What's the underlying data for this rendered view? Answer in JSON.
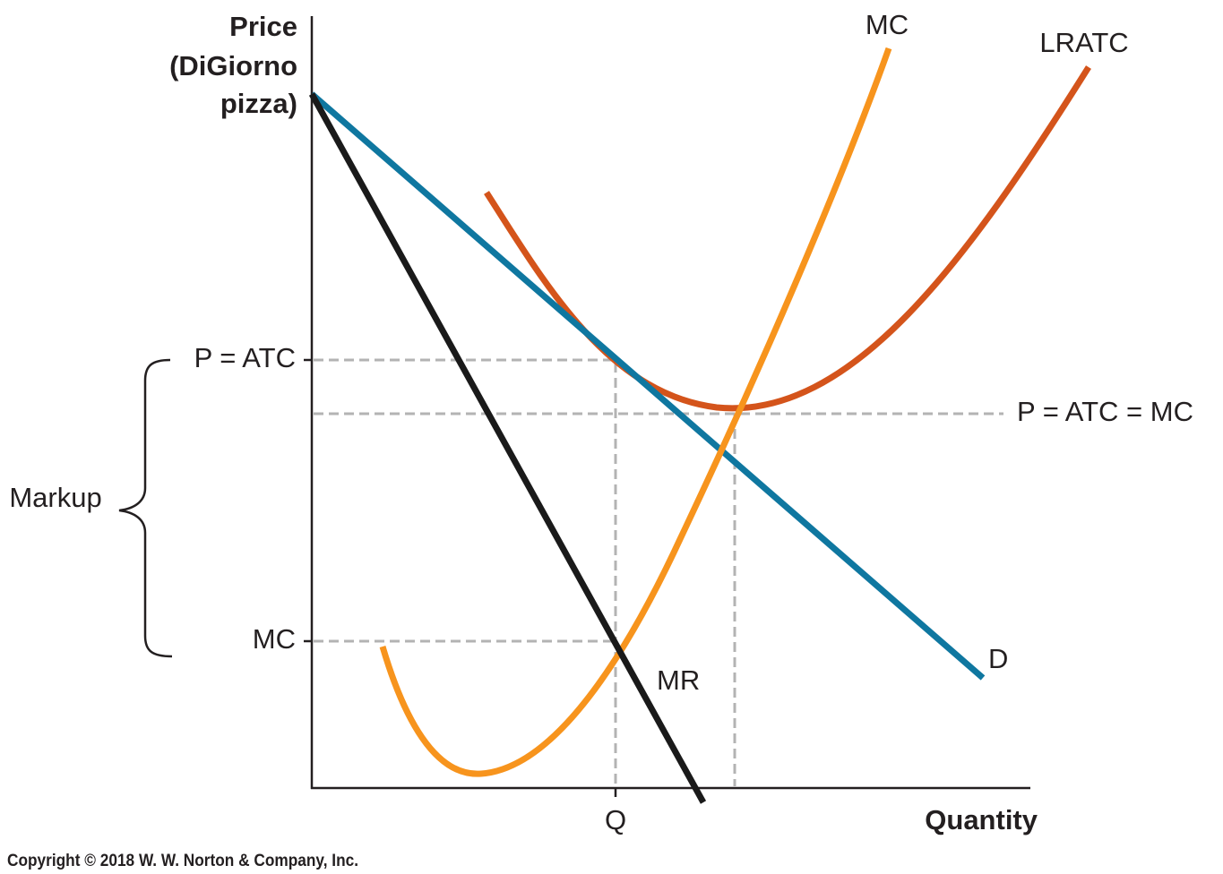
{
  "axes": {
    "y_label": [
      "Price",
      "(DiGiorno",
      "pizza)"
    ],
    "x_label": "Quantity"
  },
  "curves": {
    "mc": "MC",
    "lratc": "LRATC",
    "demand": "D",
    "mr": "MR"
  },
  "levels": {
    "p_atc": "P = ATC",
    "p_atc_mc": "P = ATC = MC",
    "mc": "MC",
    "q": "Q"
  },
  "markup": "Markup",
  "copyright": "Copyright © 2018 W. W. Norton & Company, Inc."
}
